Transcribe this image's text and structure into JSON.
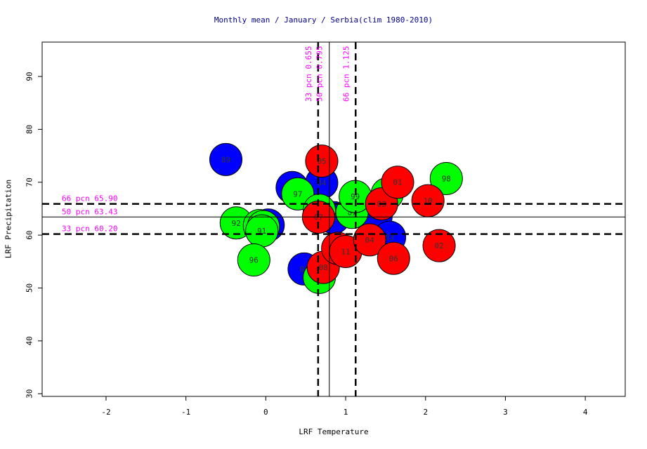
{
  "chart_data": {
    "type": "scatter",
    "title": "Monthly mean / January / Serbia(clim 1980-2010)",
    "xlabel": "LRF Temperature",
    "ylabel": "LRF Precipitation",
    "xlim": [
      -2.8,
      4.5
    ],
    "ylim": [
      29.5,
      96.5
    ],
    "x_ticks": [
      "-2",
      "-1",
      "0",
      "1",
      "2",
      "3",
      "4"
    ],
    "y_ticks": [
      "30",
      "40",
      "50",
      "60",
      "70",
      "80",
      "90"
    ],
    "thresholds": {
      "vertical": [
        {
          "value": 0.655,
          "label": "33 pcn 0.655",
          "style": "dashed"
        },
        {
          "value": 0.795,
          "label": "50 pcn 0.795",
          "style": "solid"
        },
        {
          "value": 1.125,
          "label": "66 pcn 1.125",
          "style": "dashed"
        }
      ],
      "horizontal": [
        {
          "value": 65.9,
          "label": "66 pcn 65.90",
          "style": "dashed"
        },
        {
          "value": 63.43,
          "label": "50 pcn 63.43",
          "style": "solid"
        },
        {
          "value": 60.2,
          "label": "33 pcn 60.20",
          "style": "dashed"
        }
      ]
    },
    "colors": {
      "blue": "#0000ff",
      "green": "#00ff00",
      "red": "#ff0000",
      "threshold_label": "#ff00ff",
      "title": "#00008b"
    },
    "points": [
      {
        "label": "89",
        "x": -0.5,
        "y": 74.3,
        "color": "blue"
      },
      {
        "label": "82",
        "x": 0.33,
        "y": 69.0,
        "color": "blue"
      },
      {
        "label": "84",
        "x": 0.7,
        "y": 69.9,
        "color": "blue"
      },
      {
        "label": "81",
        "x": 0.03,
        "y": 61.9,
        "color": "blue"
      },
      {
        "label": "86",
        "x": 0.48,
        "y": 53.6,
        "color": "blue"
      },
      {
        "label": "88",
        "x": 0.85,
        "y": 63.3,
        "color": "blue"
      },
      {
        "label": "85",
        "x": 1.38,
        "y": 63.5,
        "color": "blue"
      },
      {
        "label": "83",
        "x": 1.55,
        "y": 59.6,
        "color": "blue"
      },
      {
        "label": "97",
        "x": 0.4,
        "y": 67.8,
        "color": "green"
      },
      {
        "label": "92",
        "x": -0.37,
        "y": 62.3,
        "color": "green"
      },
      {
        "label": "93",
        "x": -0.08,
        "y": 61.8,
        "color": "green"
      },
      {
        "label": "90",
        "x": -0.03,
        "y": 61.6,
        "color": "green"
      },
      {
        "label": "91",
        "x": -0.05,
        "y": 60.8,
        "color": "green"
      },
      {
        "label": "96",
        "x": -0.15,
        "y": 55.3,
        "color": "green"
      },
      {
        "label": "95",
        "x": 0.67,
        "y": 52.0,
        "color": "green"
      },
      {
        "label": "00",
        "x": 0.67,
        "y": 64.7,
        "color": "green"
      },
      {
        "label": "87",
        "x": 1.08,
        "y": 64.3,
        "color": "green"
      },
      {
        "label": "99",
        "x": 1.12,
        "y": 67.3,
        "color": "green"
      },
      {
        "label": "94",
        "x": 1.52,
        "y": 67.8,
        "color": "green"
      },
      {
        "label": "98",
        "x": 2.26,
        "y": 70.7,
        "color": "green"
      },
      {
        "label": "05",
        "x": 0.7,
        "y": 74.0,
        "color": "red"
      },
      {
        "label": "07",
        "x": 0.66,
        "y": 63.4,
        "color": "red"
      },
      {
        "label": "08",
        "x": 0.72,
        "y": 53.9,
        "color": "red"
      },
      {
        "label": "09",
        "x": 0.9,
        "y": 57.5,
        "color": "red"
      },
      {
        "label": "11",
        "x": 1.0,
        "y": 56.9,
        "color": "red"
      },
      {
        "label": "03",
        "x": 1.45,
        "y": 65.9,
        "color": "red"
      },
      {
        "label": "04",
        "x": 1.3,
        "y": 59.1,
        "color": "red"
      },
      {
        "label": "06",
        "x": 1.6,
        "y": 55.6,
        "color": "red"
      },
      {
        "label": "01",
        "x": 1.65,
        "y": 70.0,
        "color": "red"
      },
      {
        "label": "10",
        "x": 2.03,
        "y": 66.5,
        "color": "red"
      },
      {
        "label": "02",
        "x": 2.17,
        "y": 58.0,
        "color": "red"
      }
    ]
  }
}
